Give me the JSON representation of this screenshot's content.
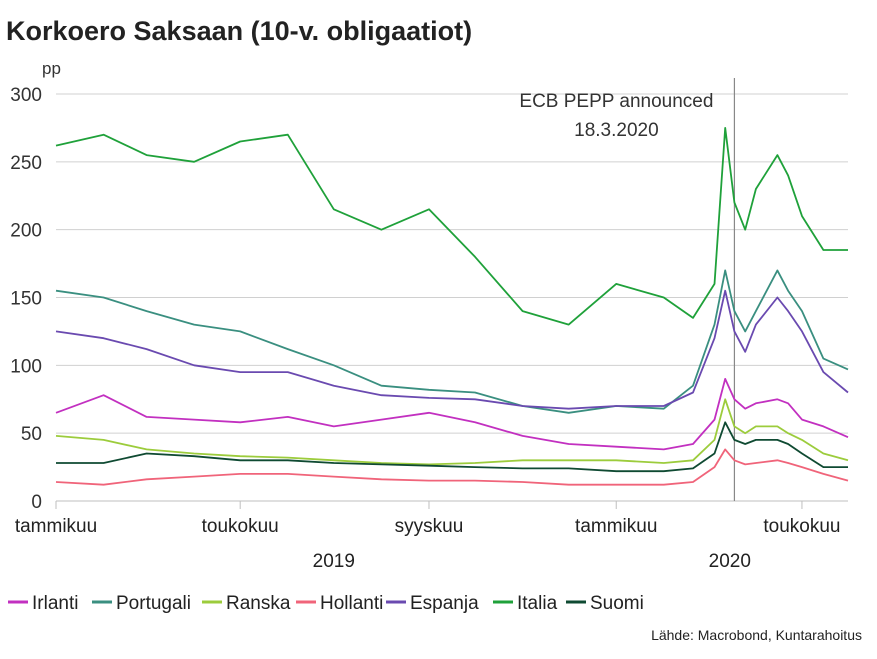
{
  "title": "Korkoero Saksaan (10-v. obligaatiot)",
  "source": "Lähde: Macrobond, Kuntarahoitus",
  "chart_data": {
    "type": "line",
    "title": "Korkoero Saksaan (10-v. obligaatiot)",
    "ylabel": "pp",
    "xlabel": "",
    "ylim": [
      0,
      300
    ],
    "yticks": [
      0,
      50,
      100,
      150,
      200,
      250,
      300
    ],
    "grid": true,
    "legend_position": "bottom",
    "x_range": [
      "2019-01-01",
      "2020-05-31"
    ],
    "x_ticks": [
      {
        "label": "tammikuu",
        "x": "2019-01-01"
      },
      {
        "label": "toukokuu",
        "x": "2019-05-01"
      },
      {
        "label": "syyskuu",
        "x": "2019-09-01"
      },
      {
        "label": "tammikuu",
        "x": "2020-01-01"
      },
      {
        "label": "toukokuu",
        "x": "2020-05-01"
      }
    ],
    "year_labels": [
      {
        "label": "2019",
        "x": "2019-07-01"
      },
      {
        "label": "2020",
        "x": "2020-03-15"
      }
    ],
    "annotation": {
      "x": "2020-03-18",
      "lines": [
        "ECB PEPP announced",
        "18.3.2020"
      ]
    },
    "x": [
      "2019-01-01",
      "2019-02-01",
      "2019-03-01",
      "2019-04-01",
      "2019-05-01",
      "2019-06-01",
      "2019-07-01",
      "2019-08-01",
      "2019-09-01",
      "2019-10-01",
      "2019-11-01",
      "2019-12-01",
      "2020-01-01",
      "2020-02-01",
      "2020-02-20",
      "2020-03-05",
      "2020-03-12",
      "2020-03-18",
      "2020-03-25",
      "2020-04-01",
      "2020-04-15",
      "2020-04-22",
      "2020-05-01",
      "2020-05-15",
      "2020-05-31"
    ],
    "series": [
      {
        "name": "Irlanti",
        "color": "#c230c0",
        "values": [
          65,
          78,
          62,
          60,
          58,
          62,
          55,
          60,
          65,
          58,
          48,
          42,
          40,
          38,
          42,
          60,
          90,
          75,
          68,
          72,
          75,
          72,
          60,
          55,
          47
        ]
      },
      {
        "name": "Portugali",
        "color": "#3a8f80",
        "values": [
          155,
          150,
          140,
          130,
          125,
          112,
          100,
          85,
          82,
          80,
          70,
          65,
          70,
          68,
          85,
          130,
          170,
          140,
          125,
          140,
          170,
          155,
          140,
          105,
          97
        ]
      },
      {
        "name": "Ranska",
        "color": "#9ccc3c",
        "values": [
          48,
          45,
          38,
          35,
          33,
          32,
          30,
          28,
          27,
          28,
          30,
          30,
          30,
          28,
          30,
          45,
          75,
          55,
          50,
          55,
          55,
          50,
          45,
          35,
          30
        ]
      },
      {
        "name": "Hollanti",
        "color": "#f0647a",
        "values": [
          14,
          12,
          16,
          18,
          20,
          20,
          18,
          16,
          15,
          15,
          14,
          12,
          12,
          12,
          14,
          25,
          38,
          30,
          27,
          28,
          30,
          28,
          25,
          20,
          15
        ]
      },
      {
        "name": "Espanja",
        "color": "#6a4ab0",
        "values": [
          125,
          120,
          112,
          100,
          95,
          95,
          85,
          78,
          76,
          75,
          70,
          68,
          70,
          70,
          80,
          120,
          155,
          125,
          110,
          130,
          150,
          140,
          125,
          95,
          80
        ]
      },
      {
        "name": "Italia",
        "color": "#1fa13a",
        "values": [
          262,
          270,
          255,
          250,
          265,
          270,
          215,
          200,
          215,
          180,
          140,
          130,
          160,
          150,
          135,
          160,
          275,
          220,
          200,
          230,
          255,
          240,
          210,
          185,
          185
        ]
      },
      {
        "name": "Suomi",
        "color": "#0f4a32",
        "values": [
          28,
          28,
          35,
          33,
          30,
          30,
          28,
          27,
          26,
          25,
          24,
          24,
          22,
          22,
          24,
          35,
          58,
          45,
          42,
          45,
          45,
          42,
          35,
          25,
          25
        ]
      }
    ]
  }
}
